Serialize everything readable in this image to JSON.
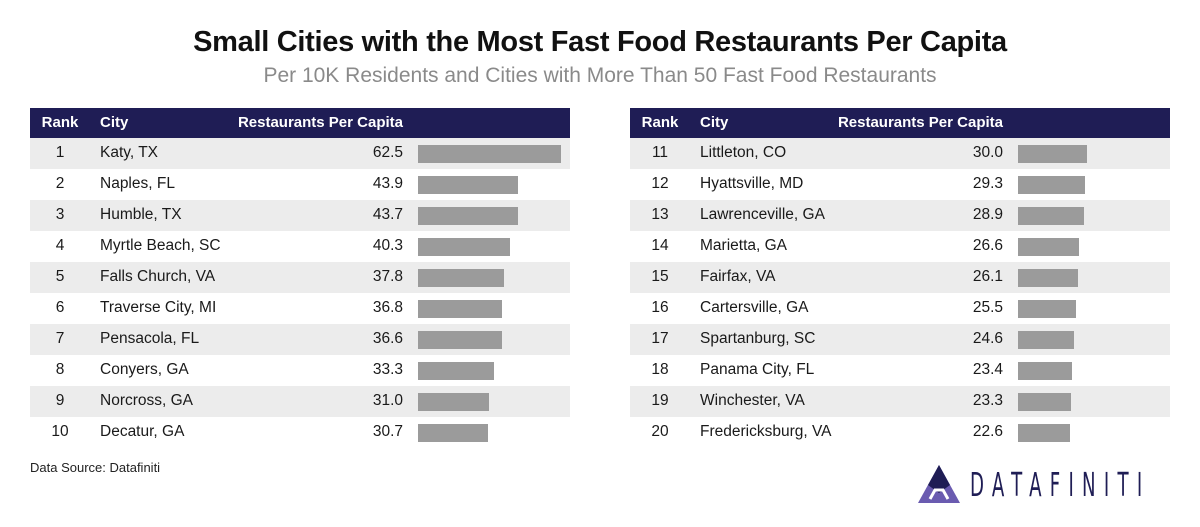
{
  "chart_data": {
    "type": "table",
    "title": "Small Cities with the Most Fast Food Restaurants Per Capita",
    "subtitle": "Per 10K Residents and Cities with More Than 50 Fast Food Restaurants",
    "columns": [
      "Rank",
      "City",
      "Restaurants Per Capita",
      ""
    ],
    "bar_color": "#9b9b9b",
    "header_color": "#1f1d55",
    "rows": [
      {
        "rank": "1",
        "city": "Katy, TX",
        "value": 62.5
      },
      {
        "rank": "2",
        "city": "Naples, FL",
        "value": 43.9
      },
      {
        "rank": "3",
        "city": "Humble, TX",
        "value": 43.7
      },
      {
        "rank": "4",
        "city": "Myrtle Beach, SC",
        "value": 40.3
      },
      {
        "rank": "5",
        "city": "Falls Church, VA",
        "value": 37.8
      },
      {
        "rank": "6",
        "city": "Traverse City, MI",
        "value": 36.8
      },
      {
        "rank": "7",
        "city": "Pensacola, FL",
        "value": 36.6
      },
      {
        "rank": "8",
        "city": "Conyers, GA",
        "value": 33.3
      },
      {
        "rank": "9",
        "city": "Norcross, GA",
        "value": 31.0
      },
      {
        "rank": "10",
        "city": "Decatur, GA",
        "value": 30.7
      },
      {
        "rank": "11",
        "city": "Littleton, CO",
        "value": 30.0
      },
      {
        "rank": "12",
        "city": "Hyattsville, MD",
        "value": 29.3
      },
      {
        "rank": "13",
        "city": "Lawrenceville, GA",
        "value": 28.9
      },
      {
        "rank": "14",
        "city": "Marietta, GA",
        "value": 26.6
      },
      {
        "rank": "15",
        "city": "Fairfax, VA",
        "value": 26.1
      },
      {
        "rank": "16",
        "city": "Cartersville, GA",
        "value": 25.5
      },
      {
        "rank": "17",
        "city": "Spartanburg, SC",
        "value": 24.6
      },
      {
        "rank": "18",
        "city": "Panama City, FL",
        "value": 23.4
      },
      {
        "rank": "19",
        "city": "Winchester, VA",
        "value": 23.3
      },
      {
        "rank": "20",
        "city": "Fredericksburg, VA",
        "value": 22.6
      }
    ]
  },
  "footer": {
    "source": "Data Source: Datafiniti",
    "logo": "DATAFINITI"
  }
}
